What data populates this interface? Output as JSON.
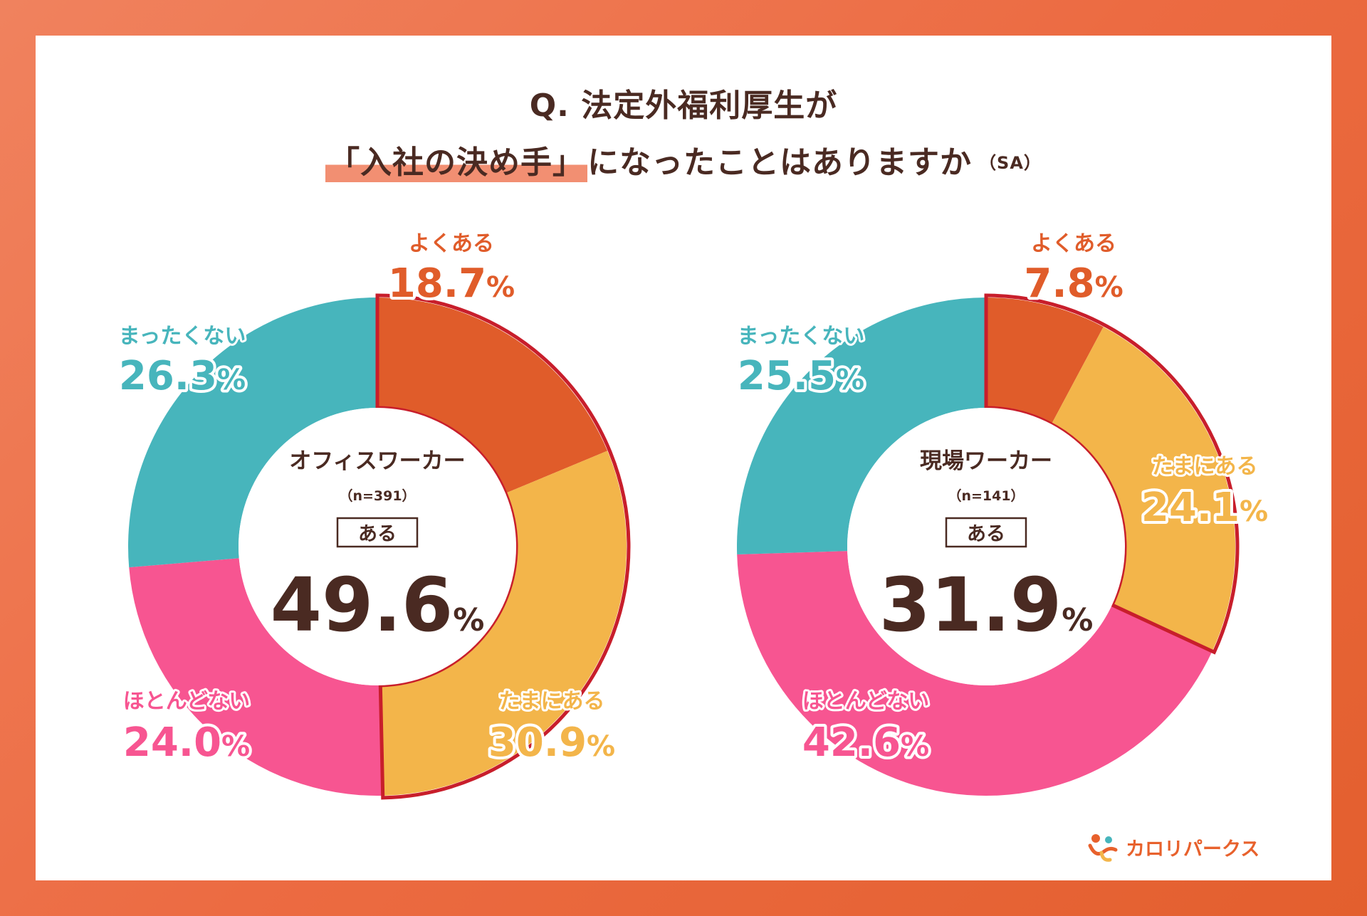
{
  "title": {
    "line1": "Q. 法定外福利厚生が",
    "line2_highlight": "「入社の決め手」",
    "line2_rest": "になったことはありますか",
    "line2_tag": "（SA）"
  },
  "colors": {
    "frequently": "#E05C2A",
    "sometimes": "#F3B54A",
    "rarely": "#F75591",
    "never": "#47B5BC",
    "outline": "#C81E2B",
    "center_text": "#4A2A22"
  },
  "chart_data": [
    {
      "type": "pie",
      "center_label": "オフィスワーカー",
      "n_label": "（n=391）",
      "aru_label": "ある",
      "aru_value": "49.6",
      "aru_unit": "%",
      "slices": [
        {
          "label": "よくある",
          "value": 18.7,
          "value_text": "18.7",
          "unit": "%",
          "color": "#E05C2A"
        },
        {
          "label": "たまにある",
          "value": 30.9,
          "value_text": "30.9",
          "unit": "%",
          "color": "#F3B54A"
        },
        {
          "label": "ほとんどない",
          "value": 24.0,
          "value_text": "24.0",
          "unit": "%",
          "color": "#F75591"
        },
        {
          "label": "まったくない",
          "value": 26.3,
          "value_text": "26.3",
          "unit": "%",
          "color": "#47B5BC"
        }
      ]
    },
    {
      "type": "pie",
      "center_label": "現場ワーカー",
      "n_label": "（n=141）",
      "aru_label": "ある",
      "aru_value": "31.9",
      "aru_unit": "%",
      "slices": [
        {
          "label": "よくある",
          "value": 7.8,
          "value_text": "7.8",
          "unit": "%",
          "color": "#E05C2A"
        },
        {
          "label": "たまにある",
          "value": 24.1,
          "value_text": "24.1",
          "unit": "%",
          "color": "#F3B54A"
        },
        {
          "label": "ほとんどない",
          "value": 42.6,
          "value_text": "42.6",
          "unit": "%",
          "color": "#F75591"
        },
        {
          "label": "まったくない",
          "value": 25.5,
          "value_text": "25.5",
          "unit": "%",
          "color": "#47B5BC"
        }
      ]
    }
  ],
  "logo": {
    "text": "カロリパークス",
    "icon": "figure-logo-icon"
  }
}
